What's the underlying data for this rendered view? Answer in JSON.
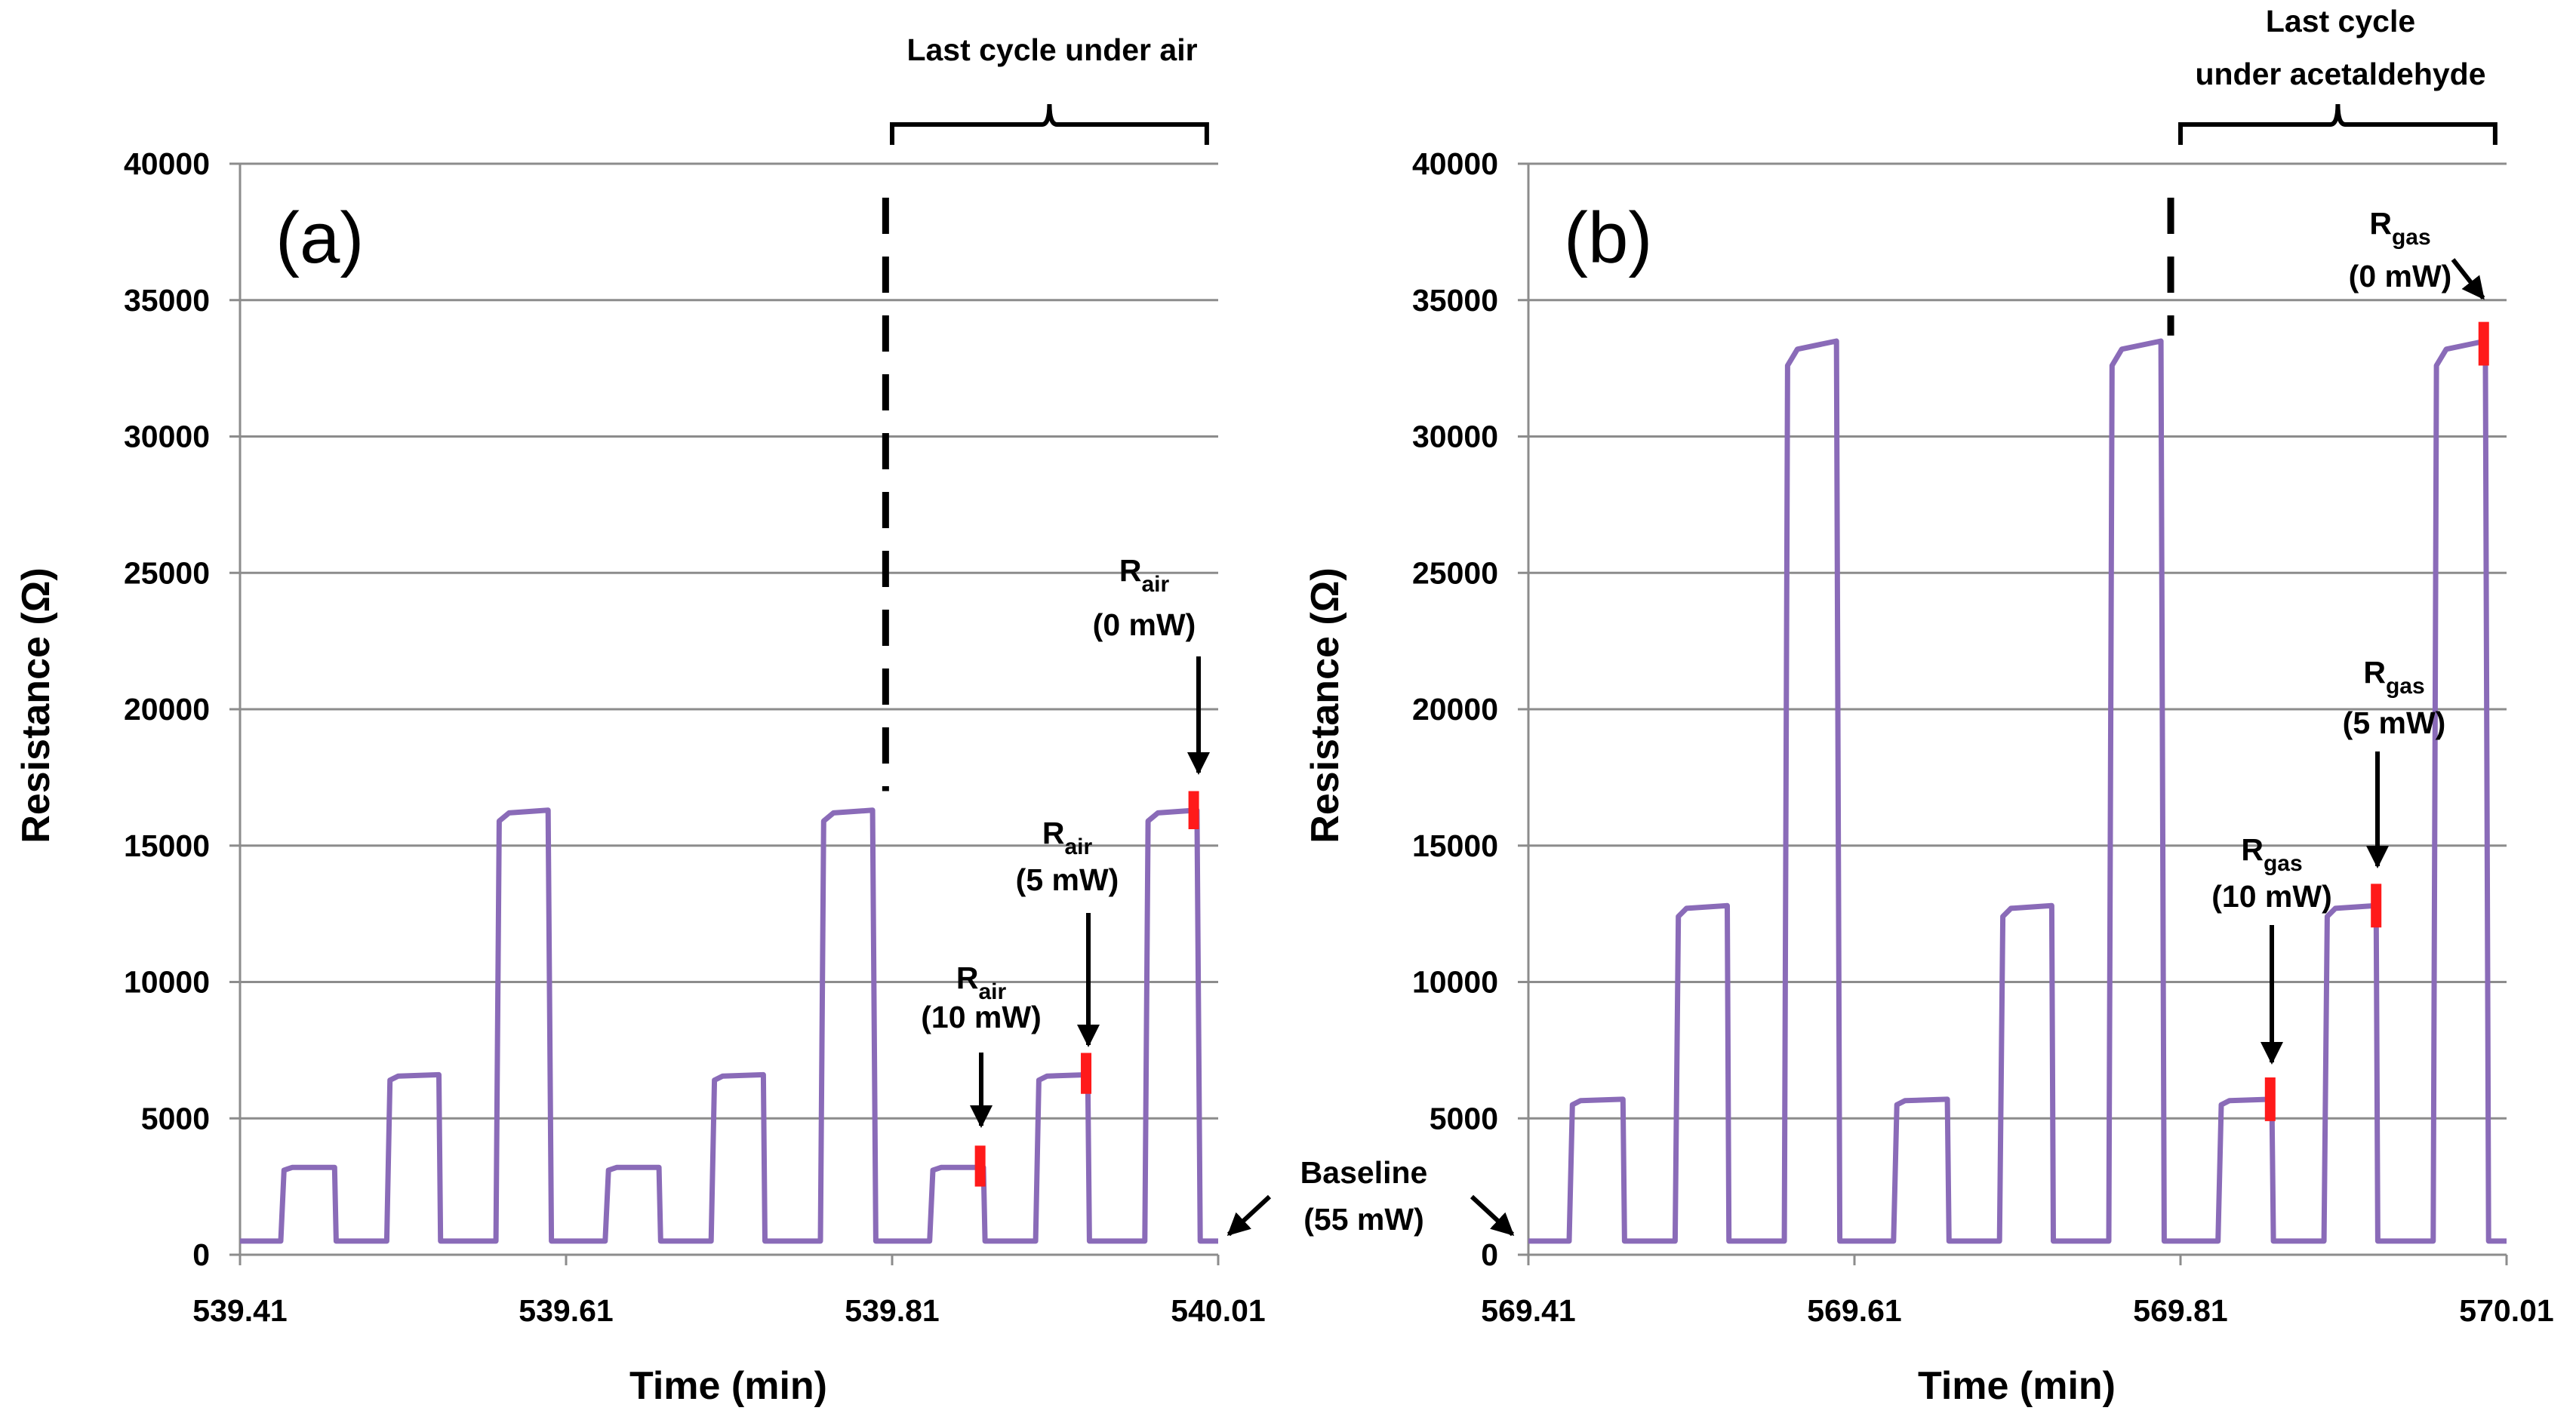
{
  "colors": {
    "series": "#8a6bb8",
    "marker": "#ff1a1a",
    "grid": "#8c8c8c",
    "axis": "#000000",
    "annotation": "#000000"
  },
  "chart_data": [
    {
      "type": "line",
      "panel_label": "(a)",
      "xlabel": "Time (min)",
      "ylabel": "Resistance (Ω)",
      "xlim": [
        539.41,
        540.01
      ],
      "ylim": [
        0,
        40000
      ],
      "x_ticks": [
        "539.41",
        "539.61",
        "539.81",
        "540.01"
      ],
      "y_ticks": [
        "0",
        "5000",
        "10000",
        "15000",
        "20000",
        "25000",
        "30000",
        "35000",
        "40000"
      ],
      "grid": "horizontal",
      "series": [
        {
          "name": "Resistance",
          "points": [
            [
              539.41,
              500
            ],
            [
              539.435,
              500
            ],
            [
              539.437,
              3100
            ],
            [
              539.442,
              3200
            ],
            [
              539.468,
              3200
            ],
            [
              539.469,
              500
            ],
            [
              539.5,
              500
            ],
            [
              539.502,
              6400
            ],
            [
              539.507,
              6550
            ],
            [
              539.532,
              6600
            ],
            [
              539.533,
              500
            ],
            [
              539.567,
              500
            ],
            [
              539.569,
              15900
            ],
            [
              539.575,
              16200
            ],
            [
              539.599,
              16300
            ],
            [
              539.601,
              500
            ],
            [
              539.634,
              500
            ],
            [
              539.636,
              3100
            ],
            [
              539.641,
              3200
            ],
            [
              539.667,
              3200
            ],
            [
              539.668,
              500
            ],
            [
              539.699,
              500
            ],
            [
              539.701,
              6400
            ],
            [
              539.706,
              6550
            ],
            [
              539.731,
              6600
            ],
            [
              539.732,
              500
            ],
            [
              539.766,
              500
            ],
            [
              539.768,
              15900
            ],
            [
              539.774,
              16200
            ],
            [
              539.798,
              16300
            ],
            [
              539.8,
              500
            ],
            [
              539.833,
              500
            ],
            [
              539.835,
              3100
            ],
            [
              539.84,
              3200
            ],
            [
              539.866,
              3200
            ],
            [
              539.867,
              500
            ],
            [
              539.898,
              500
            ],
            [
              539.9,
              6400
            ],
            [
              539.905,
              6550
            ],
            [
              539.93,
              6600
            ],
            [
              539.931,
              500
            ],
            [
              539.965,
              500
            ],
            [
              539.967,
              15900
            ],
            [
              539.973,
              16200
            ],
            [
              539.997,
              16300
            ],
            [
              539.999,
              500
            ],
            [
              540.01,
              500
            ]
          ]
        }
      ],
      "reference_line_x": 539.806,
      "reference_line_y_from": 17000,
      "red_markers": [
        {
          "x": 539.864,
          "y_from": 2500,
          "y_to": 4000
        },
        {
          "x": 539.929,
          "y_from": 5900,
          "y_to": 7400
        },
        {
          "x": 539.995,
          "y_from": 15600,
          "y_to": 17000
        }
      ],
      "bracket": {
        "label": "Last cycle under air",
        "x_from": 539.81,
        "x_to": 540.003
      },
      "annotations": [
        {
          "main": "R",
          "sub": "air",
          "value": "(10 mW)",
          "target": [
            539.864,
            4500
          ]
        },
        {
          "main": "R",
          "sub": "air",
          "value": "(5 mW)",
          "target": [
            539.929,
            7700
          ]
        },
        {
          "main": "R",
          "sub": "air",
          "value": "(0 mW)",
          "target": [
            539.995,
            17500
          ]
        }
      ],
      "baseline_label": {
        "line1": "Baseline",
        "line2": "(55 mW)"
      }
    },
    {
      "type": "line",
      "panel_label": "(b)",
      "xlabel": "Time (min)",
      "ylabel": "Resistance (Ω)",
      "xlim": [
        569.41,
        570.01
      ],
      "ylim": [
        0,
        40000
      ],
      "x_ticks": [
        "569.41",
        "569.61",
        "569.81",
        "570.01"
      ],
      "y_ticks": [
        "0",
        "5000",
        "10000",
        "15000",
        "20000",
        "25000",
        "30000",
        "35000",
        "40000"
      ],
      "grid": "horizontal",
      "series": [
        {
          "name": "Resistance",
          "points": [
            [
              569.41,
              500
            ],
            [
              569.435,
              500
            ],
            [
              569.437,
              5500
            ],
            [
              569.442,
              5650
            ],
            [
              569.468,
              5700
            ],
            [
              569.469,
              500
            ],
            [
              569.5,
              500
            ],
            [
              569.502,
              12400
            ],
            [
              569.507,
              12700
            ],
            [
              569.532,
              12800
            ],
            [
              569.533,
              500
            ],
            [
              569.567,
              500
            ],
            [
              569.569,
              32600
            ],
            [
              569.575,
              33200
            ],
            [
              569.599,
              33500
            ],
            [
              569.601,
              500
            ],
            [
              569.634,
              500
            ],
            [
              569.636,
              5500
            ],
            [
              569.641,
              5650
            ],
            [
              569.667,
              5700
            ],
            [
              569.668,
              500
            ],
            [
              569.699,
              500
            ],
            [
              569.701,
              12400
            ],
            [
              569.706,
              12700
            ],
            [
              569.731,
              12800
            ],
            [
              569.732,
              500
            ],
            [
              569.766,
              500
            ],
            [
              569.768,
              32600
            ],
            [
              569.774,
              33200
            ],
            [
              569.798,
              33500
            ],
            [
              569.8,
              500
            ],
            [
              569.833,
              500
            ],
            [
              569.835,
              5500
            ],
            [
              569.84,
              5650
            ],
            [
              569.866,
              5700
            ],
            [
              569.867,
              500
            ],
            [
              569.898,
              500
            ],
            [
              569.9,
              12400
            ],
            [
              569.905,
              12700
            ],
            [
              569.93,
              12800
            ],
            [
              569.931,
              500
            ],
            [
              569.965,
              500
            ],
            [
              569.967,
              32600
            ],
            [
              569.973,
              33200
            ],
            [
              569.997,
              33500
            ],
            [
              569.999,
              500
            ],
            [
              570.01,
              500
            ]
          ]
        }
      ],
      "reference_line_x": 569.804,
      "reference_line_y_from": 33700,
      "red_markers": [
        {
          "x": 569.865,
          "y_from": 4900,
          "y_to": 6500
        },
        {
          "x": 569.93,
          "y_from": 12000,
          "y_to": 13600
        },
        {
          "x": 569.996,
          "y_from": 32600,
          "y_to": 34200
        }
      ],
      "bracket": {
        "label_line1": "Last cycle",
        "label_line2": "under acetaldehyde",
        "x_from": 569.81,
        "x_to": 570.003
      },
      "annotations": [
        {
          "main": "R",
          "sub": "gas",
          "value": "(10 mW)",
          "target": [
            569.865,
            6700
          ]
        },
        {
          "main": "R",
          "sub": "gas",
          "value": "(5 mW)",
          "target": [
            569.93,
            13800
          ]
        },
        {
          "main": "R",
          "sub": "gas",
          "value": "(0 mW)",
          "target": [
            569.99,
            34700
          ]
        }
      ]
    }
  ]
}
